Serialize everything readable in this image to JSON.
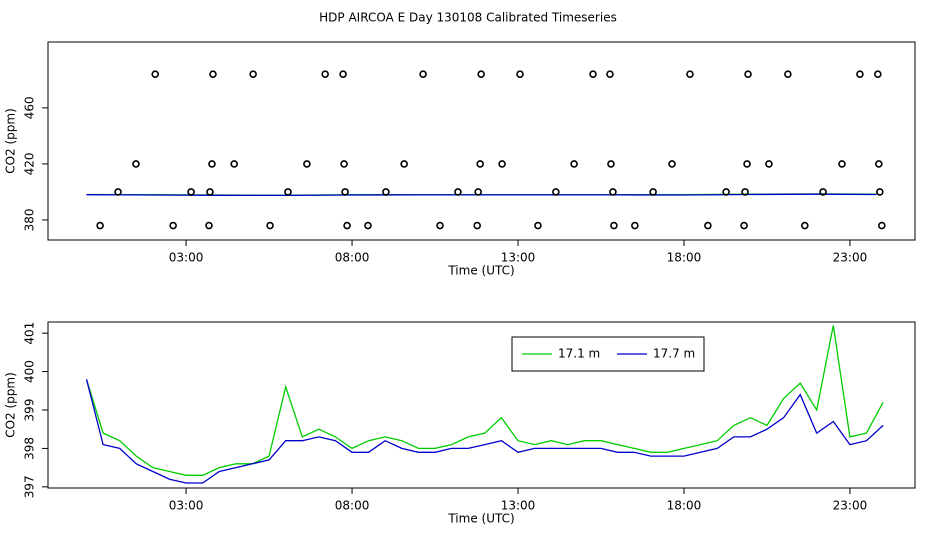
{
  "title": "HDP AIRCOA E  Day 130108  Calibrated Timeseries",
  "chart_data": [
    {
      "type": "line",
      "xlabel": "Time (UTC)",
      "ylabel": "CO2 (ppm)",
      "xlim": [
        -1.16,
        24.96
      ],
      "ylim": [
        365.7,
        507
      ],
      "xticks": [
        {
          "value": 3,
          "label": "03:00"
        },
        {
          "value": 8,
          "label": "08:00"
        },
        {
          "value": 13,
          "label": "13:00"
        },
        {
          "value": 18,
          "label": "18:00"
        },
        {
          "value": 23,
          "label": "23:00"
        }
      ],
      "yticks": [
        380,
        420,
        460
      ],
      "series": [
        {
          "style": "line",
          "color": "#00cc00",
          "x": [
            0,
            2,
            4,
            6,
            8,
            10,
            12,
            14,
            16,
            18,
            20,
            22,
            23.8
          ],
          "values": [
            398.2,
            398,
            397.8,
            397.6,
            398,
            398,
            398,
            398,
            398,
            398,
            398.4,
            398.6,
            398.4
          ]
        },
        {
          "style": "line",
          "color": "#0000cc",
          "x": [
            0,
            2,
            4,
            6,
            8,
            10,
            12,
            14,
            16,
            18,
            20,
            22,
            23.8
          ],
          "values": [
            398,
            397.8,
            397.6,
            397.5,
            397.8,
            397.9,
            397.9,
            397.9,
            397.9,
            397.8,
            398.2,
            398.4,
            398.2
          ]
        },
        {
          "style": "points",
          "color": "#000000",
          "x": [
            2.07,
            3.81,
            5.02,
            7.19,
            7.73,
            10.14,
            11.89,
            13.06,
            15.26,
            15.77,
            18.18,
            19.93,
            21.13,
            23.3,
            23.84,
            1.49,
            3.78,
            4.45,
            6.64,
            7.76,
            9.57,
            11.86,
            12.52,
            14.69,
            15.8,
            17.64,
            19.9,
            20.56,
            22.76,
            23.87,
            0.95,
            3.15,
            3.72,
            6.07,
            7.79,
            9.02,
            11.19,
            11.8,
            14.14,
            15.86,
            17.07,
            19.27,
            19.84,
            22.19,
            23.9,
            0.41,
            2.61,
            3.69,
            5.53,
            7.85,
            8.48,
            10.65,
            11.77,
            13.6,
            15.89,
            16.52,
            18.72,
            19.81,
            21.64,
            23.96
          ],
          "values": [
            484,
            484,
            484,
            484,
            484,
            484,
            484,
            484,
            484,
            484,
            484,
            484,
            484,
            484,
            484,
            420,
            420,
            420,
            420,
            420,
            420,
            420,
            420,
            420,
            420,
            420,
            420,
            420,
            420,
            420,
            400,
            400,
            400,
            400,
            400,
            400,
            400,
            400,
            400,
            400,
            400,
            400,
            400,
            400,
            400,
            376,
            376,
            376,
            376,
            376,
            376,
            376,
            376,
            376,
            376,
            376,
            376,
            376,
            376,
            376
          ]
        }
      ]
    },
    {
      "type": "line",
      "xlabel": "Time (UTC)",
      "ylabel": "CO2 (ppm)",
      "xlim": [
        -1.16,
        24.96
      ],
      "ylim": [
        396.97,
        401.29
      ],
      "xticks": [
        {
          "value": 3,
          "label": "03:00"
        },
        {
          "value": 8,
          "label": "08:00"
        },
        {
          "value": 13,
          "label": "13:00"
        },
        {
          "value": 18,
          "label": "18:00"
        },
        {
          "value": 23,
          "label": "23:00"
        }
      ],
      "yticks": [
        397,
        398,
        399,
        400,
        401
      ],
      "legend": "top",
      "x": [
        0,
        0.5,
        1,
        1.5,
        2,
        2.5,
        3,
        3.5,
        4,
        4.5,
        5,
        5.5,
        6,
        6.5,
        7,
        7.5,
        8,
        8.5,
        9,
        9.5,
        10,
        10.5,
        11,
        11.5,
        12,
        12.5,
        13,
        13.5,
        14,
        14.5,
        15,
        15.5,
        16,
        16.5,
        17,
        17.5,
        18,
        18.5,
        19,
        19.5,
        20,
        20.5,
        21,
        21.5,
        22,
        22.5,
        23,
        23.5,
        24
      ],
      "series": [
        {
          "name": "17.1 m",
          "style": "line",
          "color": "#00cc00",
          "values": [
            399.8,
            398.4,
            398.2,
            397.8,
            397.5,
            397.4,
            397.3,
            397.3,
            397.5,
            397.6,
            397.6,
            397.8,
            399.6,
            398.3,
            398.5,
            398.3,
            398.0,
            398.2,
            398.3,
            398.2,
            398.0,
            398.0,
            398.1,
            398.3,
            398.4,
            398.8,
            398.2,
            398.1,
            398.2,
            398.1,
            398.2,
            398.2,
            398.1,
            398.0,
            397.9,
            397.9,
            398.0,
            398.1,
            398.2,
            398.6,
            398.8,
            398.6,
            399.3,
            399.7,
            399.0,
            401.2,
            398.3,
            398.4,
            399.2
          ]
        },
        {
          "name": "17.7 m",
          "style": "line",
          "color": "#0000cc",
          "values": [
            399.8,
            398.1,
            398.0,
            397.6,
            397.4,
            397.2,
            397.1,
            397.1,
            397.4,
            397.5,
            397.6,
            397.7,
            398.2,
            398.2,
            398.3,
            398.2,
            397.9,
            397.9,
            398.2,
            398.0,
            397.9,
            397.9,
            398.0,
            398.0,
            398.1,
            398.2,
            397.9,
            398.0,
            398.0,
            398.0,
            398.0,
            398.0,
            397.9,
            397.9,
            397.8,
            397.8,
            397.8,
            397.9,
            398.0,
            398.3,
            398.3,
            398.5,
            398.8,
            399.4,
            398.4,
            398.7,
            398.1,
            398.2,
            398.6
          ]
        }
      ]
    }
  ]
}
